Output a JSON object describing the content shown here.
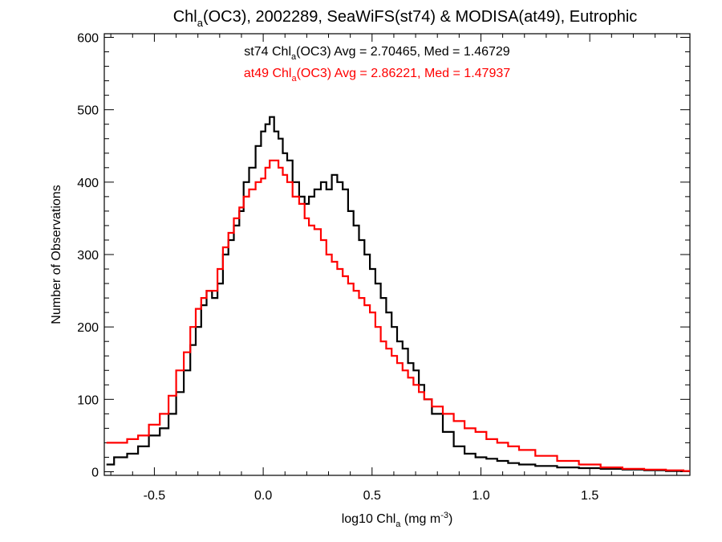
{
  "chart_data": {
    "type": "line",
    "title": {
      "pre": "Chl",
      "sub": "a",
      "post": "(OC3), 2002289, SeaWiFS(st74) & MODISA(at49), Eutrophic"
    },
    "xlabel": {
      "pre": "log10 Chl",
      "sub": "a",
      "mid": " (mg m",
      "sup": "-3",
      "post": ")"
    },
    "ylabel": "Number of Observations",
    "xlim": [
      -0.73,
      1.96
    ],
    "ylim": [
      -5,
      605
    ],
    "x_ticks": [
      {
        "v": -0.5,
        "label": "-0.5"
      },
      {
        "v": 0.0,
        "label": "0.0"
      },
      {
        "v": 0.5,
        "label": "0.5"
      },
      {
        "v": 1.0,
        "label": "1.0"
      },
      {
        "v": 1.5,
        "label": "1.5"
      }
    ],
    "y_ticks": [
      {
        "v": 0,
        "label": "0"
      },
      {
        "v": 100,
        "label": "100"
      },
      {
        "v": 200,
        "label": "200"
      },
      {
        "v": 300,
        "label": "300"
      },
      {
        "v": 400,
        "label": "400"
      },
      {
        "v": 500,
        "label": "500"
      },
      {
        "v": 600,
        "label": "600"
      }
    ],
    "grid": false,
    "legend_position": "top-center",
    "stats": [
      {
        "pre": "st74 Chl",
        "sub": "a",
        "post": "(OC3) Avg = 2.70465, Med = 1.46729",
        "color": "#000000"
      },
      {
        "pre": "at49 Chl",
        "sub": "a",
        "post": "(OC3) Avg = 2.86221, Med = 1.47937",
        "color": "#ff0000"
      }
    ],
    "series": [
      {
        "color": "#000000",
        "x": [
          -0.72,
          -0.65,
          -0.6,
          -0.55,
          -0.5,
          -0.45,
          -0.42,
          -0.38,
          -0.35,
          -0.32,
          -0.3,
          -0.27,
          -0.25,
          -0.22,
          -0.2,
          -0.17,
          -0.15,
          -0.12,
          -0.1,
          -0.08,
          -0.05,
          -0.02,
          0.0,
          0.02,
          0.04,
          0.06,
          0.08,
          0.1,
          0.12,
          0.15,
          0.18,
          0.2,
          0.22,
          0.25,
          0.28,
          0.3,
          0.33,
          0.35,
          0.38,
          0.4,
          0.43,
          0.45,
          0.48,
          0.5,
          0.53,
          0.55,
          0.58,
          0.6,
          0.63,
          0.65,
          0.68,
          0.7,
          0.73,
          0.75,
          0.8,
          0.85,
          0.9,
          0.95,
          1.0,
          1.05,
          1.1,
          1.15,
          1.2,
          1.3,
          1.4,
          1.5,
          1.6,
          1.7,
          1.8,
          1.9,
          1.96
        ],
        "y": [
          10,
          20,
          25,
          35,
          50,
          60,
          80,
          110,
          140,
          175,
          200,
          230,
          250,
          240,
          260,
          300,
          320,
          340,
          360,
          400,
          420,
          450,
          470,
          480,
          490,
          470,
          460,
          440,
          430,
          400,
          380,
          370,
          380,
          390,
          400,
          390,
          410,
          400,
          390,
          360,
          340,
          320,
          300,
          280,
          260,
          240,
          220,
          200,
          180,
          170,
          150,
          140,
          120,
          100,
          80,
          55,
          35,
          25,
          20,
          18,
          15,
          12,
          10,
          8,
          6,
          5,
          4,
          3,
          2,
          1,
          1
        ]
      },
      {
        "color": "#ff0000",
        "x": [
          -0.72,
          -0.65,
          -0.6,
          -0.55,
          -0.5,
          -0.45,
          -0.42,
          -0.38,
          -0.35,
          -0.32,
          -0.3,
          -0.27,
          -0.25,
          -0.22,
          -0.2,
          -0.17,
          -0.15,
          -0.12,
          -0.1,
          -0.08,
          -0.05,
          -0.02,
          0.0,
          0.02,
          0.04,
          0.06,
          0.08,
          0.1,
          0.12,
          0.15,
          0.18,
          0.2,
          0.22,
          0.25,
          0.28,
          0.3,
          0.33,
          0.35,
          0.38,
          0.4,
          0.43,
          0.45,
          0.48,
          0.5,
          0.53,
          0.55,
          0.58,
          0.6,
          0.63,
          0.65,
          0.68,
          0.7,
          0.73,
          0.75,
          0.8,
          0.85,
          0.9,
          0.95,
          1.0,
          1.05,
          1.1,
          1.15,
          1.2,
          1.3,
          1.4,
          1.5,
          1.6,
          1.7,
          1.8,
          1.9,
          1.96
        ],
        "y": [
          40,
          40,
          45,
          50,
          65,
          80,
          105,
          140,
          165,
          200,
          225,
          240,
          250,
          250,
          280,
          310,
          330,
          350,
          365,
          380,
          390,
          400,
          405,
          420,
          430,
          430,
          420,
          410,
          400,
          380,
          370,
          350,
          340,
          335,
          320,
          300,
          290,
          280,
          270,
          260,
          250,
          240,
          230,
          220,
          200,
          180,
          170,
          160,
          150,
          140,
          130,
          120,
          110,
          100,
          90,
          80,
          70,
          60,
          55,
          45,
          40,
          35,
          30,
          22,
          15,
          10,
          6,
          4,
          3,
          2,
          1
        ]
      }
    ]
  }
}
